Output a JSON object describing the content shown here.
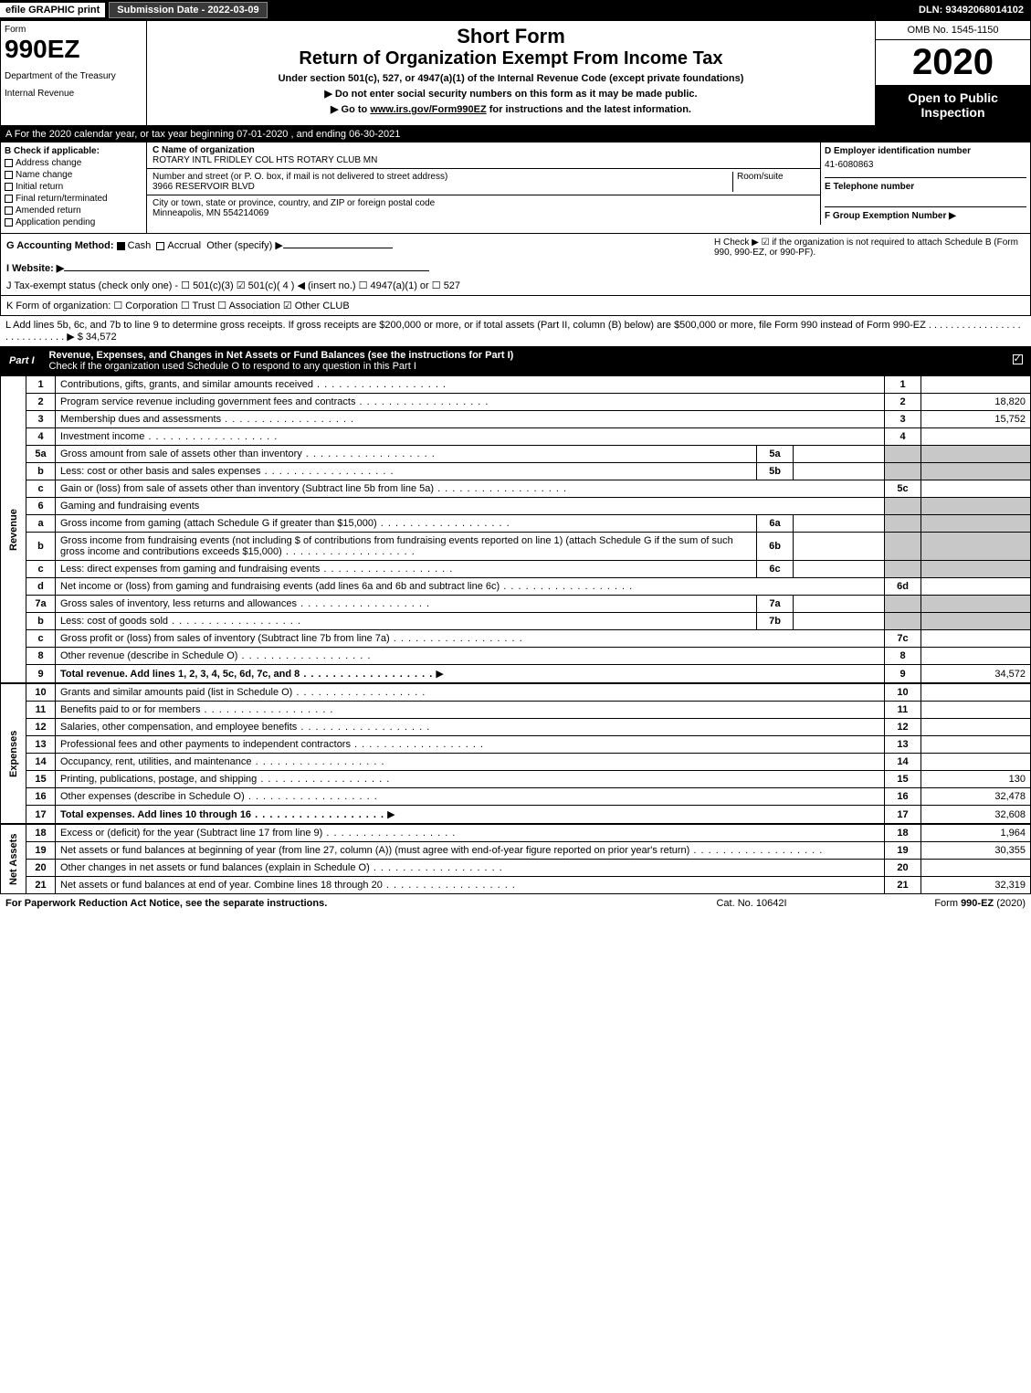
{
  "topbar": {
    "efile": "efile GRAPHIC print",
    "submission": "Submission Date - 2022-03-09",
    "dln": "DLN: 93492068014102"
  },
  "header": {
    "form_label": "Form",
    "form_number": "990EZ",
    "dept1": "Department of the Treasury",
    "dept2": "Internal Revenue",
    "short_form": "Short Form",
    "return_title": "Return of Organization Exempt From Income Tax",
    "under_section": "Under section 501(c), 527, or 4947(a)(1) of the Internal Revenue Code (except private foundations)",
    "warn": "▶ Do not enter social security numbers on this form as it may be made public.",
    "goto_pre": "▶ Go to ",
    "goto_link": "www.irs.gov/Form990EZ",
    "goto_post": " for instructions and the latest information.",
    "omb": "OMB No. 1545-1150",
    "year": "2020",
    "open_public": "Open to Public Inspection"
  },
  "line_a": "A For the 2020 calendar year, or tax year beginning 07-01-2020 , and ending 06-30-2021",
  "section_b": {
    "label": "B  Check if applicable:",
    "items": [
      "Address change",
      "Name change",
      "Initial return",
      "Final return/terminated",
      "Amended return",
      "Application pending"
    ]
  },
  "section_c": {
    "label": "C Name of organization",
    "name": "ROTARY INTL FRIDLEY COL HTS ROTARY CLUB MN",
    "addr_label": "Number and street (or P. O. box, if mail is not delivered to street address)",
    "room_label": "Room/suite",
    "addr": "3966 RESERVOIR BLVD",
    "city_label": "City or town, state or province, country, and ZIP or foreign postal code",
    "city": "Minneapolis, MN  554214069"
  },
  "section_d": {
    "label": "D Employer identification number",
    "ein": "41-6080863",
    "e_label": "E Telephone number",
    "f_label": "F Group Exemption Number   ▶"
  },
  "line_g": {
    "label": "G Accounting Method:",
    "cash": "Cash",
    "accrual": "Accrual",
    "other": "Other (specify) ▶"
  },
  "line_h": "H  Check ▶ ☑ if the organization is not required to attach Schedule B (Form 990, 990-EZ, or 990-PF).",
  "line_i": "I Website: ▶",
  "line_j": "J Tax-exempt status (check only one) -  ☐ 501(c)(3)  ☑ 501(c)( 4 ) ◀ (insert no.)  ☐ 4947(a)(1) or  ☐ 527",
  "line_k": "K Form of organization:   ☐ Corporation   ☐ Trust   ☐ Association   ☑ Other CLUB",
  "line_l": "L Add lines 5b, 6c, and 7b to line 9 to determine gross receipts. If gross receipts are $200,000 or more, or if total assets (Part II, column (B) below) are $500,000 or more, file Form 990 instead of Form 990-EZ  .  .  .  .  .  .  .  .  .  .  .  .  .  .  .  .  .  .  .  .  .  .  .  .  .  .  .  .  ▶ $ 34,572",
  "part1": {
    "label": "Part I",
    "title": "Revenue, Expenses, and Changes in Net Assets or Fund Balances (see the instructions for Part I)",
    "subtitle": "Check if the organization used Schedule O to respond to any question in this Part I"
  },
  "sections": {
    "revenue": "Revenue",
    "expenses": "Expenses",
    "netassets": "Net Assets"
  },
  "rows": [
    {
      "n": "1",
      "d": "Contributions, gifts, grants, and similar amounts received",
      "r": "1",
      "v": ""
    },
    {
      "n": "2",
      "d": "Program service revenue including government fees and contracts",
      "r": "2",
      "v": "18,820"
    },
    {
      "n": "3",
      "d": "Membership dues and assessments",
      "r": "3",
      "v": "15,752"
    },
    {
      "n": "4",
      "d": "Investment income",
      "r": "4",
      "v": ""
    },
    {
      "n": "5a",
      "d": "Gross amount from sale of assets other than inventory",
      "in": "5a"
    },
    {
      "n": "b",
      "d": "Less: cost or other basis and sales expenses",
      "in": "5b"
    },
    {
      "n": "c",
      "d": "Gain or (loss) from sale of assets other than inventory (Subtract line 5b from line 5a)",
      "r": "5c",
      "v": ""
    },
    {
      "n": "6",
      "d": "Gaming and fundraising events"
    },
    {
      "n": "a",
      "d": "Gross income from gaming (attach Schedule G if greater than $15,000)",
      "in": "6a"
    },
    {
      "n": "b",
      "d": "Gross income from fundraising events (not including $                  of contributions from fundraising events reported on line 1) (attach Schedule G if the sum of such gross income and contributions exceeds $15,000)",
      "in": "6b"
    },
    {
      "n": "c",
      "d": "Less: direct expenses from gaming and fundraising events",
      "in": "6c"
    },
    {
      "n": "d",
      "d": "Net income or (loss) from gaming and fundraising events (add lines 6a and 6b and subtract line 6c)",
      "r": "6d",
      "v": ""
    },
    {
      "n": "7a",
      "d": "Gross sales of inventory, less returns and allowances",
      "in": "7a"
    },
    {
      "n": "b",
      "d": "Less: cost of goods sold",
      "in": "7b"
    },
    {
      "n": "c",
      "d": "Gross profit or (loss) from sales of inventory (Subtract line 7b from line 7a)",
      "r": "7c",
      "v": ""
    },
    {
      "n": "8",
      "d": "Other revenue (describe in Schedule O)",
      "r": "8",
      "v": ""
    },
    {
      "n": "9",
      "d": "Total revenue. Add lines 1, 2, 3, 4, 5c, 6d, 7c, and 8",
      "r": "9",
      "v": "34,572",
      "arrow": true,
      "bold": true
    }
  ],
  "expense_rows": [
    {
      "n": "10",
      "d": "Grants and similar amounts paid (list in Schedule O)",
      "r": "10",
      "v": ""
    },
    {
      "n": "11",
      "d": "Benefits paid to or for members",
      "r": "11",
      "v": ""
    },
    {
      "n": "12",
      "d": "Salaries, other compensation, and employee benefits",
      "r": "12",
      "v": ""
    },
    {
      "n": "13",
      "d": "Professional fees and other payments to independent contractors",
      "r": "13",
      "v": ""
    },
    {
      "n": "14",
      "d": "Occupancy, rent, utilities, and maintenance",
      "r": "14",
      "v": ""
    },
    {
      "n": "15",
      "d": "Printing, publications, postage, and shipping",
      "r": "15",
      "v": "130"
    },
    {
      "n": "16",
      "d": "Other expenses (describe in Schedule O)",
      "r": "16",
      "v": "32,478"
    },
    {
      "n": "17",
      "d": "Total expenses. Add lines 10 through 16",
      "r": "17",
      "v": "32,608",
      "arrow": true,
      "bold": true
    }
  ],
  "netasset_rows": [
    {
      "n": "18",
      "d": "Excess or (deficit) for the year (Subtract line 17 from line 9)",
      "r": "18",
      "v": "1,964"
    },
    {
      "n": "19",
      "d": "Net assets or fund balances at beginning of year (from line 27, column (A)) (must agree with end-of-year figure reported on prior year's return)",
      "r": "19",
      "v": "30,355"
    },
    {
      "n": "20",
      "d": "Other changes in net assets or fund balances (explain in Schedule O)",
      "r": "20",
      "v": ""
    },
    {
      "n": "21",
      "d": "Net assets or fund balances at end of year. Combine lines 18 through 20",
      "r": "21",
      "v": "32,319"
    }
  ],
  "footer": {
    "left": "For Paperwork Reduction Act Notice, see the separate instructions.",
    "mid": "Cat. No. 10642I",
    "right": "Form 990-EZ (2020)"
  }
}
